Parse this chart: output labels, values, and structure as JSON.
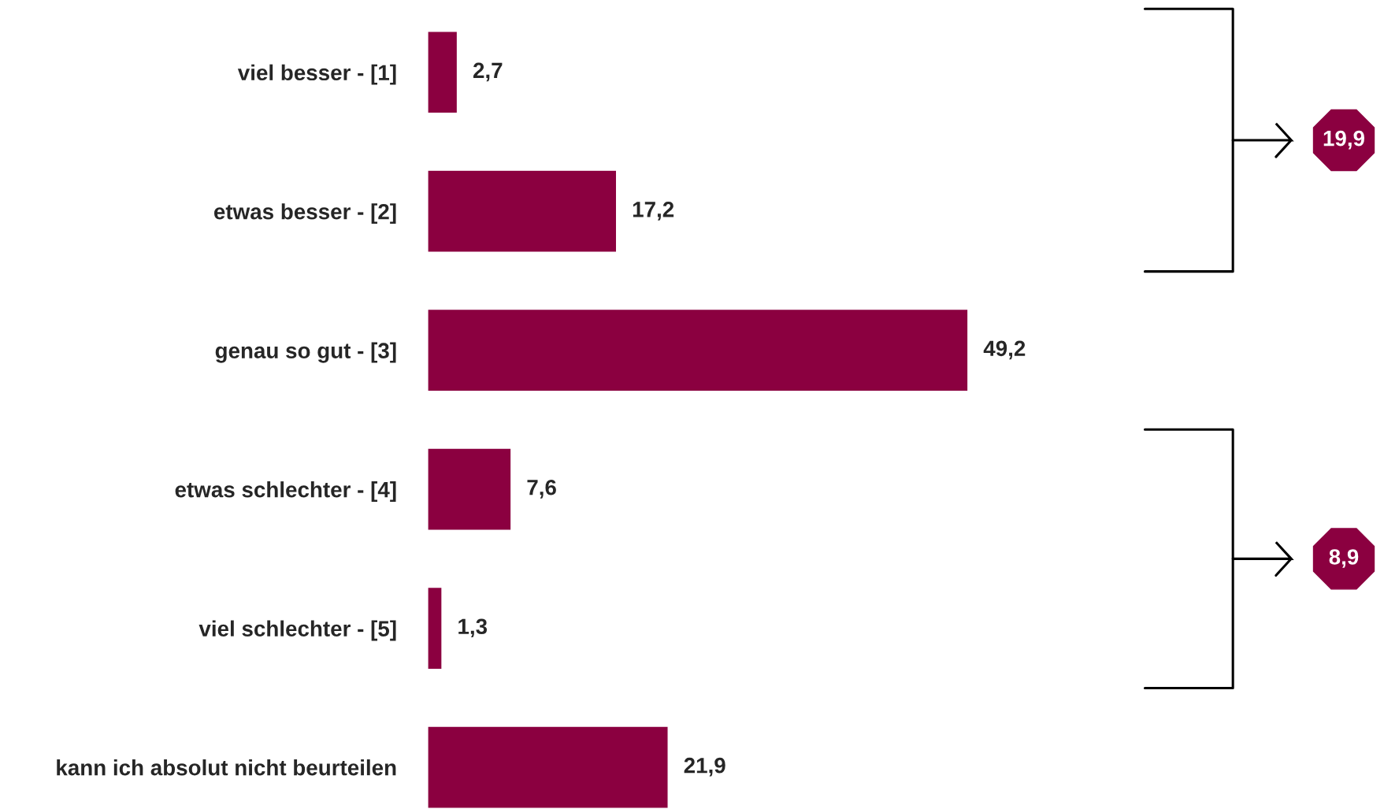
{
  "chart_data": {
    "type": "bar",
    "orientation": "horizontal",
    "categories": [
      "viel besser - [1]",
      "etwas besser - [2]",
      "genau so gut - [3]",
      "etwas schlechter - [4]",
      "viel schlechter - [5]",
      "kann ich absolut nicht beurteilen"
    ],
    "values": [
      2.7,
      17.2,
      49.2,
      7.6,
      1.3,
      21.9
    ],
    "value_labels": [
      "2,7",
      "17,2",
      "49,2",
      "7,6",
      "1,3",
      "21,9"
    ],
    "color": "#8b0040",
    "annotations": [
      "19,9",
      "8,9"
    ],
    "grid": false,
    "tick_labels": "y"
  }
}
